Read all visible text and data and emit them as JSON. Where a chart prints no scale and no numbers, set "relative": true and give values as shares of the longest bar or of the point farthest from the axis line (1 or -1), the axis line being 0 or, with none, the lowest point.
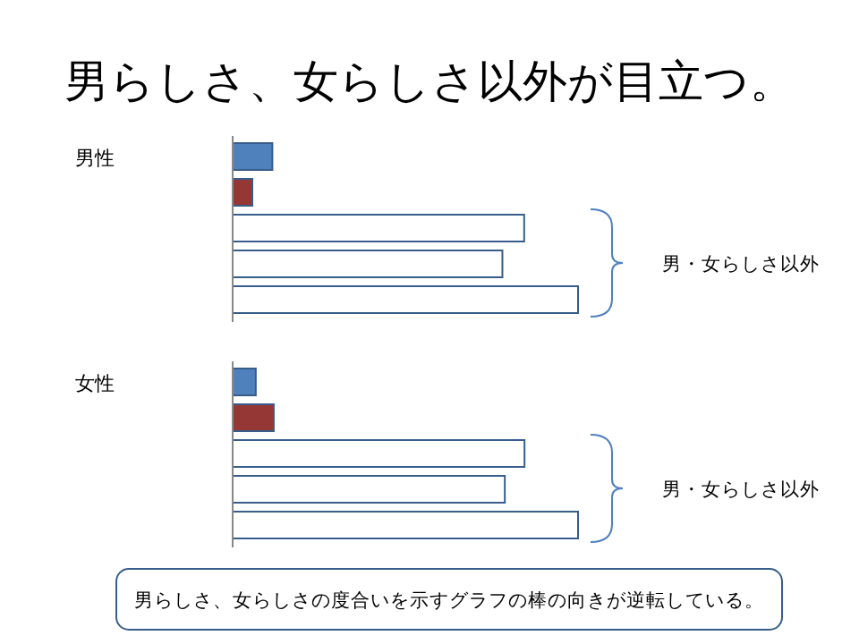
{
  "chart_data": [
    {
      "type": "other",
      "title": "男らしさ、女らしさ以外が目立つ。",
      "annotations": [
        "男らしさ、女らしさの度合いを示すグラフの棒の向きが逆転している。"
      ]
    },
    {
      "type": "bar",
      "orientation": "horizontal",
      "relative": true,
      "title": "男性",
      "categories": [
        null,
        null,
        null,
        null,
        null
      ],
      "values": [
        0.115,
        0.057,
        0.844,
        0.781,
        1
      ],
      "colors": [
        "#4f81bd",
        "#953735",
        "#ffffff",
        "#ffffff",
        "#ffffff"
      ],
      "annotations": [
        "男・女らしさ以外"
      ]
    },
    {
      "type": "bar",
      "orientation": "horizontal",
      "relative": true,
      "title": "女性",
      "categories": [
        null,
        null,
        null,
        null,
        null
      ],
      "values": [
        0.067,
        0.119,
        0.845,
        0.788,
        1
      ],
      "colors": [
        "#4f81bd",
        "#953735",
        "#ffffff",
        "#ffffff",
        "#ffffff"
      ],
      "annotations": [
        "男・女らしさ以外"
      ]
    }
  ]
}
